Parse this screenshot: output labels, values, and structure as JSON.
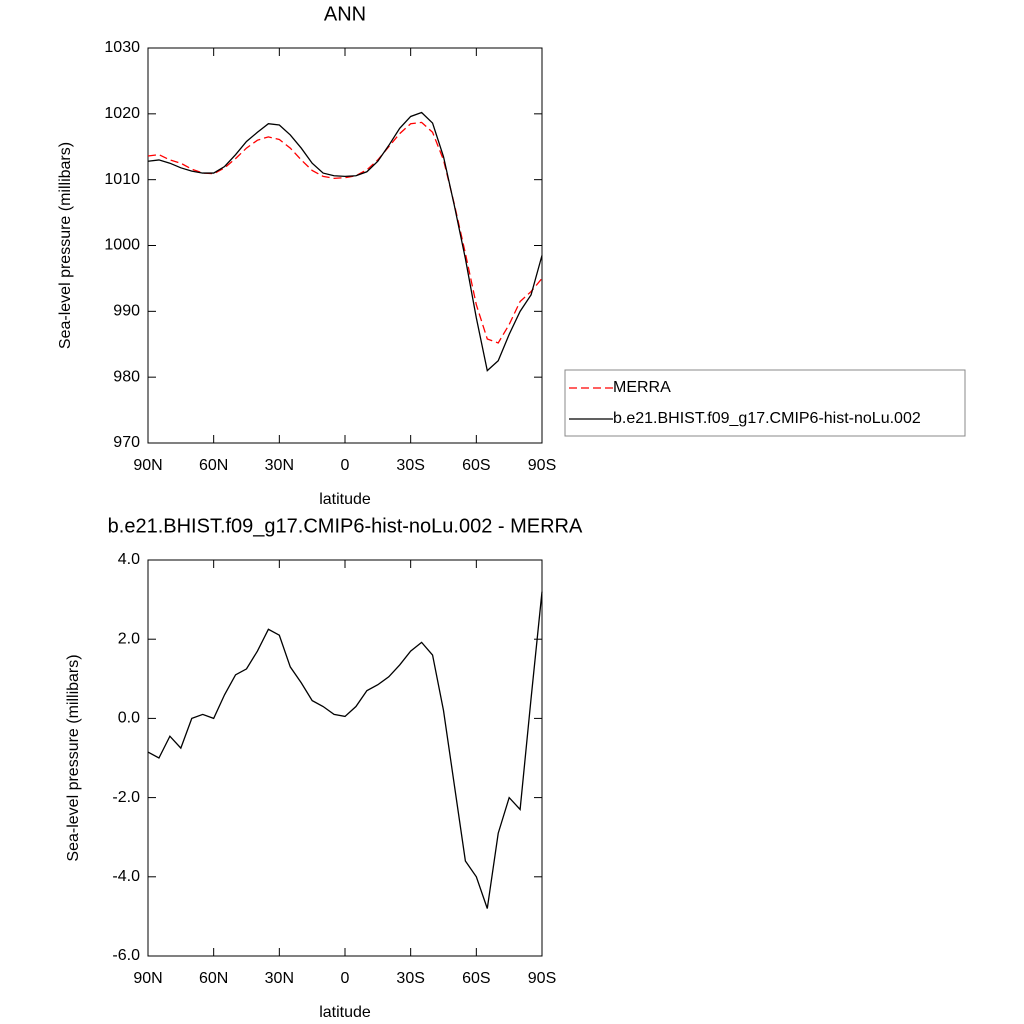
{
  "chart_data": [
    {
      "type": "line",
      "title": "ANN",
      "x_label": "latitude",
      "y_label": "Sea-level pressure (millibars)",
      "x": [
        90,
        85,
        80,
        75,
        70,
        65,
        60,
        55,
        50,
        45,
        40,
        35,
        30,
        25,
        20,
        15,
        10,
        5,
        0,
        -5,
        -10,
        -15,
        -20,
        -25,
        -30,
        -35,
        -40,
        -45,
        -50,
        -55,
        -60,
        -65,
        -70,
        -75,
        -80,
        -85,
        -90
      ],
      "xlim": [
        90,
        -90
      ],
      "xticks": [
        {
          "value": 90,
          "label": "90N"
        },
        {
          "value": 60,
          "label": "60N"
        },
        {
          "value": 30,
          "label": "30N"
        },
        0,
        {
          "value": -30,
          "label": "30S"
        },
        {
          "value": -60,
          "label": "60S"
        },
        {
          "value": -90,
          "label": "90S"
        }
      ],
      "ylim": [
        970,
        1030
      ],
      "yticks": [
        970,
        980,
        990,
        1000,
        1010,
        1020,
        1030
      ],
      "legend": "right",
      "series": [
        {
          "name": "MERRA",
          "color": "#ff0000",
          "linestyle": "dashed",
          "values": [
            1013.6,
            1013.8,
            1013.0,
            1012.5,
            1011.6,
            1011.0,
            1010.9,
            1011.8,
            1013.2,
            1014.8,
            1016.0,
            1016.5,
            1016.1,
            1014.8,
            1013.0,
            1011.4,
            1010.5,
            1010.2,
            1010.3,
            1010.6,
            1011.5,
            1013.0,
            1015.0,
            1017.0,
            1018.5,
            1018.7,
            1017.2,
            1013.0,
            1006.2,
            998.8,
            991.0,
            985.8,
            985.2,
            988.0,
            991.5,
            993.0,
            995.0
          ]
        },
        {
          "name": "b.e21.BHIST.f09_g17.CMIP6-hist-noLu.002",
          "color": "#000000",
          "linestyle": "solid",
          "values": [
            1012.8,
            1013.0,
            1012.5,
            1011.8,
            1011.3,
            1011.0,
            1011.0,
            1012.0,
            1013.8,
            1015.8,
            1017.2,
            1018.5,
            1018.3,
            1016.8,
            1014.8,
            1012.5,
            1011.0,
            1010.6,
            1010.5,
            1010.6,
            1011.2,
            1012.8,
            1015.2,
            1017.8,
            1019.6,
            1020.2,
            1018.6,
            1013.5,
            1006.0,
            998.0,
            989.0,
            981.0,
            982.5,
            986.5,
            990.0,
            992.5,
            998.5
          ]
        }
      ]
    },
    {
      "type": "line",
      "title": "b.e21.BHIST.f09_g17.CMIP6-hist-noLu.002 - MERRA",
      "x_label": "latitude",
      "y_label": "Sea-level pressure (millibars)",
      "x": [
        90,
        85,
        80,
        75,
        70,
        65,
        60,
        55,
        50,
        45,
        40,
        35,
        30,
        25,
        20,
        15,
        10,
        5,
        0,
        -5,
        -10,
        -15,
        -20,
        -25,
        -30,
        -35,
        -40,
        -45,
        -50,
        -55,
        -60,
        -65,
        -70,
        -75,
        -80,
        -85,
        -90
      ],
      "xlim": [
        90,
        -90
      ],
      "xticks": [
        {
          "value": 90,
          "label": "90N"
        },
        {
          "value": 60,
          "label": "60N"
        },
        {
          "value": 30,
          "label": "30N"
        },
        0,
        {
          "value": -30,
          "label": "30S"
        },
        {
          "value": -60,
          "label": "60S"
        },
        {
          "value": -90,
          "label": "90S"
        }
      ],
      "ylim": [
        -6,
        4
      ],
      "yticks": [
        {
          "value": -6,
          "label": "-6.0"
        },
        {
          "value": -4,
          "label": "-4.0"
        },
        {
          "value": -2,
          "label": "-2.0"
        },
        {
          "value": 0,
          "label": "0.0"
        },
        {
          "value": 2,
          "label": "2.0"
        },
        {
          "value": 4,
          "label": "4.0"
        }
      ],
      "series": [
        {
          "color": "#000000",
          "linestyle": "solid",
          "values": [
            -0.85,
            -1.0,
            -0.45,
            -0.75,
            0.0,
            0.1,
            0.0,
            0.6,
            1.1,
            1.25,
            1.7,
            2.25,
            2.1,
            1.3,
            0.9,
            0.45,
            0.3,
            0.1,
            0.05,
            0.3,
            0.7,
            0.85,
            1.05,
            1.35,
            1.7,
            1.92,
            1.6,
            0.2,
            -1.7,
            -3.6,
            -4.0,
            -4.8,
            -2.9,
            -2.0,
            -2.3,
            0.5,
            3.2
          ]
        }
      ]
    }
  ]
}
